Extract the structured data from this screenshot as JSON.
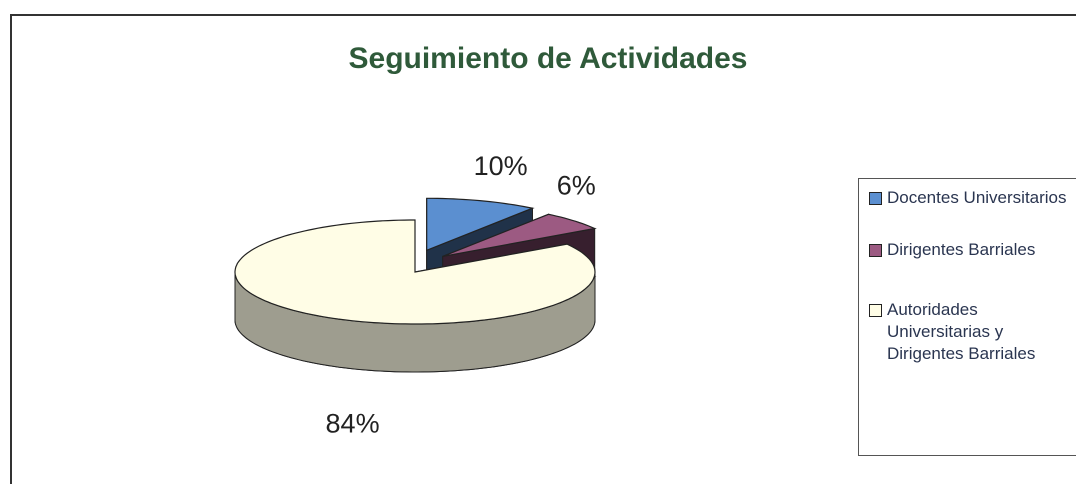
{
  "chart_data": {
    "type": "pie3d",
    "title": "Seguimiento de Actividades",
    "categories": [
      "Docentes Universitarios",
      "Dirigentes Barriales",
      "Autoridades Universitarias y Dirigentes Barriales"
    ],
    "values": [
      10,
      6,
      84
    ],
    "value_labels": [
      "10%",
      "6%",
      "84%"
    ],
    "colors": [
      "#5b8fd0",
      "#9c5a82",
      "#fffde6"
    ],
    "legend": "right"
  }
}
